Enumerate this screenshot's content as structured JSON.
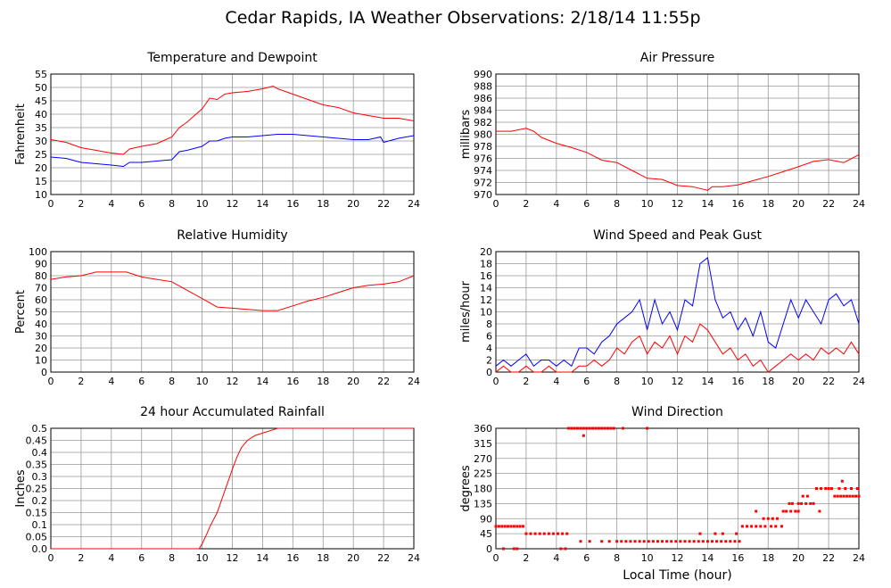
{
  "page": {
    "title": "Cedar Rapids, IA Weather Observations: 2/18/14 11:55p"
  },
  "colors": {
    "red": "#ff0000",
    "blue": "#0000ff",
    "grid": "#999999",
    "frame": "#000000"
  },
  "chart_data": [
    {
      "id": "temp",
      "type": "line",
      "title": "Temperature and Dewpoint",
      "xlabel": "",
      "ylabel": "Fahrenheit",
      "xlim": [
        0,
        24
      ],
      "ylim": [
        10,
        55
      ],
      "x_ticks": [
        "0",
        "2",
        "4",
        "6",
        "8",
        "10",
        "12",
        "14",
        "16",
        "18",
        "20",
        "22",
        "24"
      ],
      "y_ticks": [
        "10",
        "15",
        "20",
        "25",
        "30",
        "35",
        "40",
        "45",
        "50",
        "55"
      ],
      "grid": true,
      "series": [
        {
          "color": "#ff0000",
          "x": [
            0,
            1,
            2,
            3,
            4,
            4.8,
            5.2,
            6,
            7,
            8,
            8.5,
            9,
            10,
            10.5,
            11,
            11.5,
            12,
            13,
            14,
            14.7,
            15,
            16,
            17,
            18,
            19,
            20,
            21,
            22,
            23,
            24
          ],
          "y": [
            30.5,
            29.5,
            27.5,
            26.5,
            25.5,
            25,
            27,
            28,
            29,
            31.5,
            35,
            37,
            42,
            46,
            45.5,
            47.5,
            48,
            48.5,
            49.5,
            50.5,
            49.5,
            47.5,
            45.5,
            43.5,
            42.5,
            40.5,
            39.5,
            38.5,
            38.5,
            37.5
          ]
        },
        {
          "color": "#0000ff",
          "x": [
            0,
            1,
            2,
            3,
            4,
            4.8,
            5.2,
            6,
            7,
            8,
            8.5,
            9,
            10,
            10.5,
            11,
            11.5,
            12,
            13,
            14,
            15,
            16,
            17,
            18,
            19,
            20,
            21,
            21.8,
            22,
            23,
            24
          ],
          "y": [
            24,
            23.5,
            22,
            21.5,
            21,
            20.5,
            22,
            22,
            22.5,
            23,
            26,
            26.5,
            28,
            30,
            30,
            31,
            31.5,
            31.5,
            32,
            32.5,
            32.5,
            32,
            31.5,
            31,
            30.5,
            30.5,
            31.5,
            29.5,
            31,
            32
          ]
        }
      ]
    },
    {
      "id": "pressure",
      "type": "line",
      "title": "Air Pressure",
      "xlabel": "",
      "ylabel": "millibars",
      "xlim": [
        0,
        24
      ],
      "ylim": [
        970,
        990
      ],
      "x_ticks": [
        "0",
        "2",
        "4",
        "6",
        "8",
        "10",
        "12",
        "14",
        "16",
        "18",
        "20",
        "22",
        "24"
      ],
      "y_ticks": [
        "970",
        "972",
        "974",
        "976",
        "978",
        "980",
        "982",
        "984",
        "986",
        "988",
        "990"
      ],
      "grid": true,
      "series": [
        {
          "color": "#ff0000",
          "x": [
            0,
            1,
            2,
            2.5,
            3,
            4,
            5,
            6,
            7,
            8,
            9,
            10,
            11,
            12,
            13,
            14,
            14.3,
            15,
            16,
            17,
            18,
            19,
            20,
            21,
            22,
            23,
            24
          ],
          "y": [
            980.5,
            980.5,
            981,
            980.5,
            979.5,
            978.5,
            977.8,
            977,
            975.7,
            975.3,
            974,
            972.7,
            972.5,
            971.5,
            971.3,
            970.7,
            971.3,
            971.3,
            971.6,
            972.3,
            973,
            973.8,
            974.6,
            975.5,
            975.8,
            975.3,
            976.6
          ]
        }
      ]
    },
    {
      "id": "humidity",
      "type": "line",
      "title": "Relative Humidity",
      "xlabel": "",
      "ylabel": "Percent",
      "xlim": [
        0,
        24
      ],
      "ylim": [
        0,
        100
      ],
      "x_ticks": [
        "0",
        "2",
        "4",
        "6",
        "8",
        "10",
        "12",
        "14",
        "16",
        "18",
        "20",
        "22",
        "24"
      ],
      "y_ticks": [
        "0",
        "10",
        "20",
        "30",
        "40",
        "50",
        "60",
        "70",
        "80",
        "90",
        "100"
      ],
      "grid": true,
      "series": [
        {
          "color": "#ff0000",
          "x": [
            0,
            1,
            2,
            3,
            4,
            5,
            6,
            7,
            8,
            9,
            10,
            11,
            12,
            13,
            14,
            15,
            16,
            17,
            18,
            19,
            20,
            21,
            22,
            23,
            24
          ],
          "y": [
            77,
            79,
            80,
            83,
            83,
            83,
            79,
            77,
            75,
            68,
            61,
            54,
            53,
            52,
            51,
            51,
            55,
            59,
            62,
            66,
            70,
            72,
            73,
            75,
            80
          ]
        }
      ]
    },
    {
      "id": "wind",
      "type": "line",
      "title": "Wind Speed and Peak Gust",
      "xlabel": "",
      "ylabel": "miles/hour",
      "xlim": [
        0,
        24
      ],
      "ylim": [
        0,
        20
      ],
      "x_ticks": [
        "0",
        "2",
        "4",
        "6",
        "8",
        "10",
        "12",
        "14",
        "16",
        "18",
        "20",
        "22",
        "24"
      ],
      "y_ticks": [
        "0",
        "2",
        "4",
        "6",
        "8",
        "10",
        "12",
        "14",
        "16",
        "18",
        "20"
      ],
      "grid": true,
      "series": [
        {
          "color": "#0000ff",
          "x": [
            0,
            0.5,
            1,
            1.5,
            2,
            2.5,
            3,
            3.5,
            4,
            4.5,
            5,
            5.5,
            6,
            6.5,
            7,
            7.5,
            8,
            8.5,
            9,
            9.5,
            10,
            10.5,
            11,
            11.5,
            12,
            12.5,
            13,
            13.5,
            14,
            14.5,
            15,
            15.5,
            16,
            16.5,
            17,
            17.5,
            18,
            18.5,
            19,
            19.5,
            20,
            20.5,
            21,
            21.5,
            22,
            22.5,
            23,
            23.5,
            24
          ],
          "y": [
            1,
            2,
            1,
            2,
            3,
            1,
            2,
            2,
            1,
            2,
            1,
            4,
            4,
            3,
            5,
            6,
            8,
            9,
            10,
            12,
            7,
            12,
            8,
            10,
            7,
            12,
            11,
            18,
            19,
            12,
            9,
            10,
            7,
            9,
            6,
            10,
            5,
            4,
            8,
            12,
            9,
            12,
            10,
            8,
            12,
            13,
            11,
            12,
            8
          ]
        },
        {
          "color": "#ff0000",
          "x": [
            0,
            0.5,
            1,
            1.5,
            2,
            2.5,
            3,
            3.5,
            4,
            4.5,
            5,
            5.5,
            6,
            6.5,
            7,
            7.5,
            8,
            8.5,
            9,
            9.5,
            10,
            10.5,
            11,
            11.5,
            12,
            12.5,
            13,
            13.5,
            14,
            14.5,
            15,
            15.5,
            16,
            16.5,
            17,
            17.5,
            18,
            18.5,
            19,
            19.5,
            20,
            20.5,
            21,
            21.5,
            22,
            22.5,
            23,
            23.5,
            24
          ],
          "y": [
            0,
            1,
            0,
            0,
            1,
            0,
            0,
            1,
            0,
            0,
            0,
            1,
            1,
            2,
            1,
            2,
            4,
            3,
            5,
            6,
            3,
            5,
            4,
            6,
            3,
            6,
            5,
            8,
            7,
            5,
            3,
            4,
            2,
            3,
            1,
            2,
            0,
            1,
            2,
            3,
            2,
            3,
            2,
            4,
            3,
            4,
            3,
            5,
            3
          ]
        }
      ]
    },
    {
      "id": "rain",
      "type": "line",
      "title": "24 hour Accumulated Rainfall",
      "xlabel": "",
      "ylabel": "Inches",
      "xlim": [
        0,
        24
      ],
      "ylim": [
        0,
        0.5
      ],
      "x_ticks": [
        "0",
        "2",
        "4",
        "6",
        "8",
        "10",
        "12",
        "14",
        "16",
        "18",
        "20",
        "22",
        "24"
      ],
      "y_ticks": [
        "0.0",
        "0.05",
        "0.1",
        "0.15",
        "0.2",
        "0.25",
        "0.3",
        "0.35",
        "0.4",
        "0.45",
        "0.5"
      ],
      "grid": true,
      "series": [
        {
          "color": "#ff0000",
          "x": [
            0,
            9.8,
            10,
            10.3,
            10.5,
            11,
            11.5,
            12,
            12.3,
            12.6,
            13,
            13.5,
            14,
            14.5,
            15,
            24
          ],
          "y": [
            0,
            0,
            0.02,
            0.06,
            0.09,
            0.15,
            0.24,
            0.33,
            0.38,
            0.42,
            0.45,
            0.47,
            0.48,
            0.49,
            0.5,
            0.5
          ]
        }
      ]
    },
    {
      "id": "winddir",
      "type": "scatter",
      "title": "Wind Direction",
      "xlabel": "Local Time (hour)",
      "ylabel": "degrees",
      "xlim": [
        0,
        24
      ],
      "ylim": [
        0,
        360
      ],
      "x_ticks": [
        "0",
        "2",
        "4",
        "6",
        "8",
        "10",
        "12",
        "14",
        "16",
        "18",
        "20",
        "22",
        "24"
      ],
      "y_ticks": [
        "0",
        "45",
        "90",
        "135",
        "180",
        "225",
        "270",
        "315",
        "360"
      ],
      "grid": true,
      "series": [
        {
          "color": "#ff0000",
          "x": [
            0,
            0.2,
            0.4,
            0.6,
            0.8,
            1,
            1.2,
            1.4,
            1.6,
            1.8,
            0.5,
            1.2,
            1.4,
            2,
            2.3,
            2.6,
            2.9,
            3.2,
            3.5,
            3.8,
            4.1,
            4.4,
            4.7,
            4.3,
            4.6,
            4.8,
            5,
            5.2,
            5.4,
            5.6,
            5.8,
            6,
            6.2,
            6.4,
            6.6,
            6.8,
            7,
            7.2,
            7.4,
            7.6,
            7.8,
            8.4,
            10,
            5.6,
            6.2,
            5.8,
            7,
            7.5,
            8,
            8.3,
            8.6,
            8.9,
            9.2,
            9.5,
            9.8,
            10.1,
            10.4,
            10.7,
            11,
            11.3,
            11.6,
            11.9,
            12.2,
            12.5,
            12.8,
            13.1,
            13.4,
            13.7,
            14,
            14.3,
            14.6,
            14.9,
            15.2,
            15.5,
            15.8,
            16.1,
            13.5,
            14.5,
            15,
            15.9,
            16.3,
            16.6,
            16.9,
            17.2,
            17.5,
            17.8,
            17.2,
            17.7,
            18,
            18.3,
            18.6,
            18.9,
            18.2,
            18.5,
            19,
            19.2,
            19.5,
            19.8,
            19.4,
            19.6,
            20,
            20.2,
            20.5,
            20.8,
            21,
            20.3,
            20.6,
            21.2,
            21.5,
            21.8,
            22,
            22.2,
            22.4,
            22.6,
            22.8,
            23,
            23.2,
            23.4,
            23.6,
            23.8,
            24,
            22.7,
            23.1,
            23.5,
            23.9,
            22.9,
            20,
            21.4
          ],
          "y": [
            67,
            67,
            67,
            67,
            67,
            67,
            67,
            67,
            67,
            67,
            0,
            0,
            0,
            45,
            45,
            45,
            45,
            45,
            45,
            45,
            45,
            45,
            45,
            0,
            0,
            360,
            360,
            360,
            360,
            360,
            360,
            360,
            360,
            360,
            360,
            360,
            360,
            360,
            360,
            360,
            360,
            360,
            360,
            22,
            22,
            338,
            22,
            22,
            22,
            22,
            22,
            22,
            22,
            22,
            22,
            22,
            22,
            22,
            22,
            22,
            22,
            22,
            22,
            22,
            22,
            22,
            22,
            22,
            22,
            22,
            22,
            22,
            22,
            22,
            22,
            22,
            45,
            45,
            45,
            45,
            67,
            67,
            67,
            67,
            67,
            67,
            112,
            90,
            90,
            90,
            90,
            67,
            67,
            67,
            112,
            112,
            112,
            112,
            135,
            135,
            135,
            135,
            135,
            135,
            135,
            157,
            157,
            180,
            180,
            180,
            180,
            180,
            157,
            157,
            157,
            157,
            157,
            157,
            157,
            157,
            157,
            180,
            180,
            180,
            180,
            202,
            112,
            112
          ]
        }
      ]
    }
  ]
}
